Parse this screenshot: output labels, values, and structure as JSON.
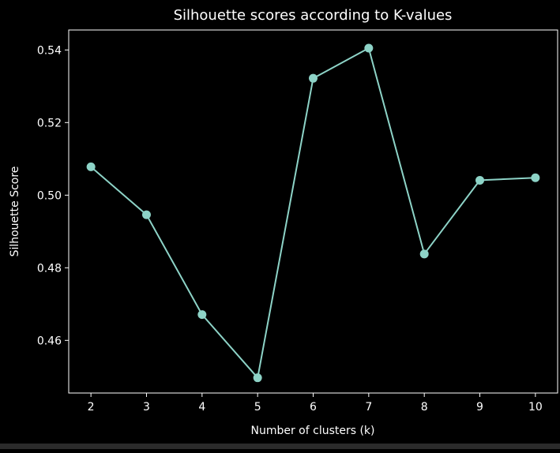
{
  "chart_data": {
    "type": "line",
    "title": "Silhouette scores according to K-values",
    "xlabel": "Number of clusters (k)",
    "ylabel": "Silhouette Score",
    "x": [
      2,
      3,
      4,
      5,
      6,
      7,
      8,
      9,
      10
    ],
    "series": [
      {
        "values": [
          0.5078,
          0.4946,
          0.4671,
          0.4497,
          0.5322,
          0.5405,
          0.4838,
          0.5041,
          0.5048
        ]
      }
    ],
    "xlim": [
      1.6,
      10.4
    ],
    "ylim": [
      0.4455,
      0.5455
    ],
    "xticks": [
      "2",
      "3",
      "4",
      "5",
      "6",
      "7",
      "8",
      "9",
      "10"
    ],
    "yticks": [
      "0.46",
      "0.48",
      "0.50",
      "0.52",
      "0.54"
    ],
    "ytick_values": [
      0.46,
      0.48,
      0.5,
      0.52,
      0.54
    ],
    "grid": false,
    "marker": "circle",
    "colors": {
      "background": "#000000",
      "axes": "#ffffff",
      "line": "#8dd3c7",
      "text": "#ffffff"
    }
  }
}
